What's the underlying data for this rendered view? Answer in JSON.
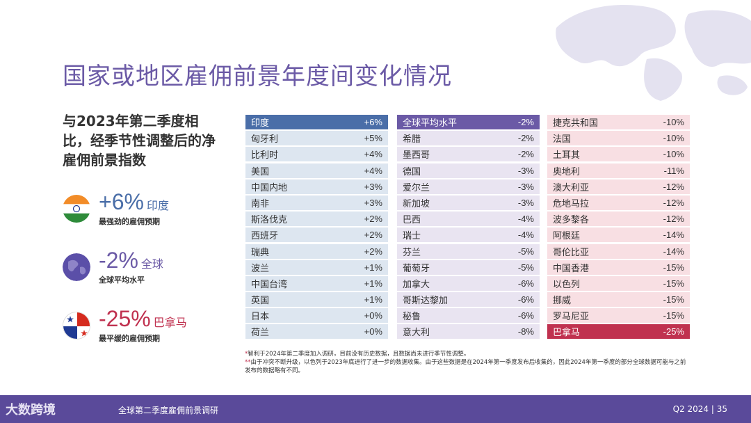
{
  "title": "国家或地区雇佣前景年度间变化情况",
  "subtitle": "与2023年第二季度相比，经季节性调整后的净雇佣前景指数",
  "highlights": {
    "top": {
      "value": "+6%",
      "label": "印度",
      "desc": "最强劲的雇佣预期",
      "icon": "india-flag-icon",
      "color": "#4a6ea8"
    },
    "global": {
      "value": "-2%",
      "label": "全球",
      "desc": "全球平均水平",
      "icon": "globe-icon",
      "color": "#6b5aa6"
    },
    "bottom": {
      "value": "-25%",
      "label": "巴拿马",
      "desc": "最平缓的雇佣预期",
      "icon": "panama-flag-icon",
      "color": "#c0314f"
    }
  },
  "table": {
    "col1": [
      {
        "name": "印度",
        "value": "+6%"
      },
      {
        "name": "匈牙利",
        "value": "+5%"
      },
      {
        "name": "比利时",
        "value": "+4%"
      },
      {
        "name": "美国",
        "value": "+4%"
      },
      {
        "name": "中国内地",
        "value": "+3%"
      },
      {
        "name": "南非",
        "value": "+3%"
      },
      {
        "name": "斯洛伐克",
        "value": "+2%"
      },
      {
        "name": "西班牙",
        "value": "+2%"
      },
      {
        "name": "瑞典",
        "value": "+2%"
      },
      {
        "name": "波兰",
        "value": "+1%"
      },
      {
        "name": "中国台湾",
        "value": "+1%"
      },
      {
        "name": "英国",
        "value": "+1%"
      },
      {
        "name": "日本",
        "value": "+0%"
      },
      {
        "name": "荷兰",
        "value": "+0%"
      }
    ],
    "col2": [
      {
        "name": "全球平均水平",
        "value": "-2%"
      },
      {
        "name": "希腊",
        "value": "-2%"
      },
      {
        "name": "墨西哥",
        "value": "-2%"
      },
      {
        "name": "德国",
        "value": "-3%"
      },
      {
        "name": "爱尔兰",
        "value": "-3%"
      },
      {
        "name": "新加坡",
        "value": "-3%"
      },
      {
        "name": "巴西",
        "value": "-4%"
      },
      {
        "name": "瑞士",
        "value": "-4%"
      },
      {
        "name": "芬兰",
        "value": "-5%"
      },
      {
        "name": "葡萄牙",
        "value": "-5%"
      },
      {
        "name": "加拿大",
        "value": "-6%"
      },
      {
        "name": "哥斯达黎加",
        "value": "-6%"
      },
      {
        "name": "秘鲁",
        "value": "-6%"
      },
      {
        "name": "意大利",
        "value": "-8%"
      }
    ],
    "col3": [
      {
        "name": "捷克共和国",
        "value": "-10%"
      },
      {
        "name": "法国",
        "value": "-10%"
      },
      {
        "name": "土耳其",
        "value": "-10%"
      },
      {
        "name": "奥地利",
        "value": "-11%"
      },
      {
        "name": "澳大利亚",
        "value": "-12%"
      },
      {
        "name": "危地马拉",
        "value": "-12%"
      },
      {
        "name": "波多黎各",
        "value": "-12%"
      },
      {
        "name": "阿根廷",
        "value": "-14%"
      },
      {
        "name": "哥伦比亚",
        "value": "-14%"
      },
      {
        "name": "中国香港",
        "value": "-15%"
      },
      {
        "name": "以色列",
        "value": "-15%"
      },
      {
        "name": "挪威",
        "value": "-15%"
      },
      {
        "name": "罗马尼亚",
        "value": "-15%"
      },
      {
        "name": "巴拿马",
        "value": "-25%"
      }
    ]
  },
  "notes": {
    "n1": "智利于2024年第二季度加入调研，目前没有历史数据，且数据尚未进行季节性调整。",
    "n2": "由于冲突不断升级，以色列于2023年底进行了进一步的数据收集。由于这些数据是在2024年第一季度发布后收集的，因此2024年第一季度的部分全球数据可能与之前发布的数据略有不同。"
  },
  "footer": {
    "logo": "大数跨境",
    "title": "全球第二季度雇佣前景调研",
    "page": "Q2 2024  |  35"
  }
}
